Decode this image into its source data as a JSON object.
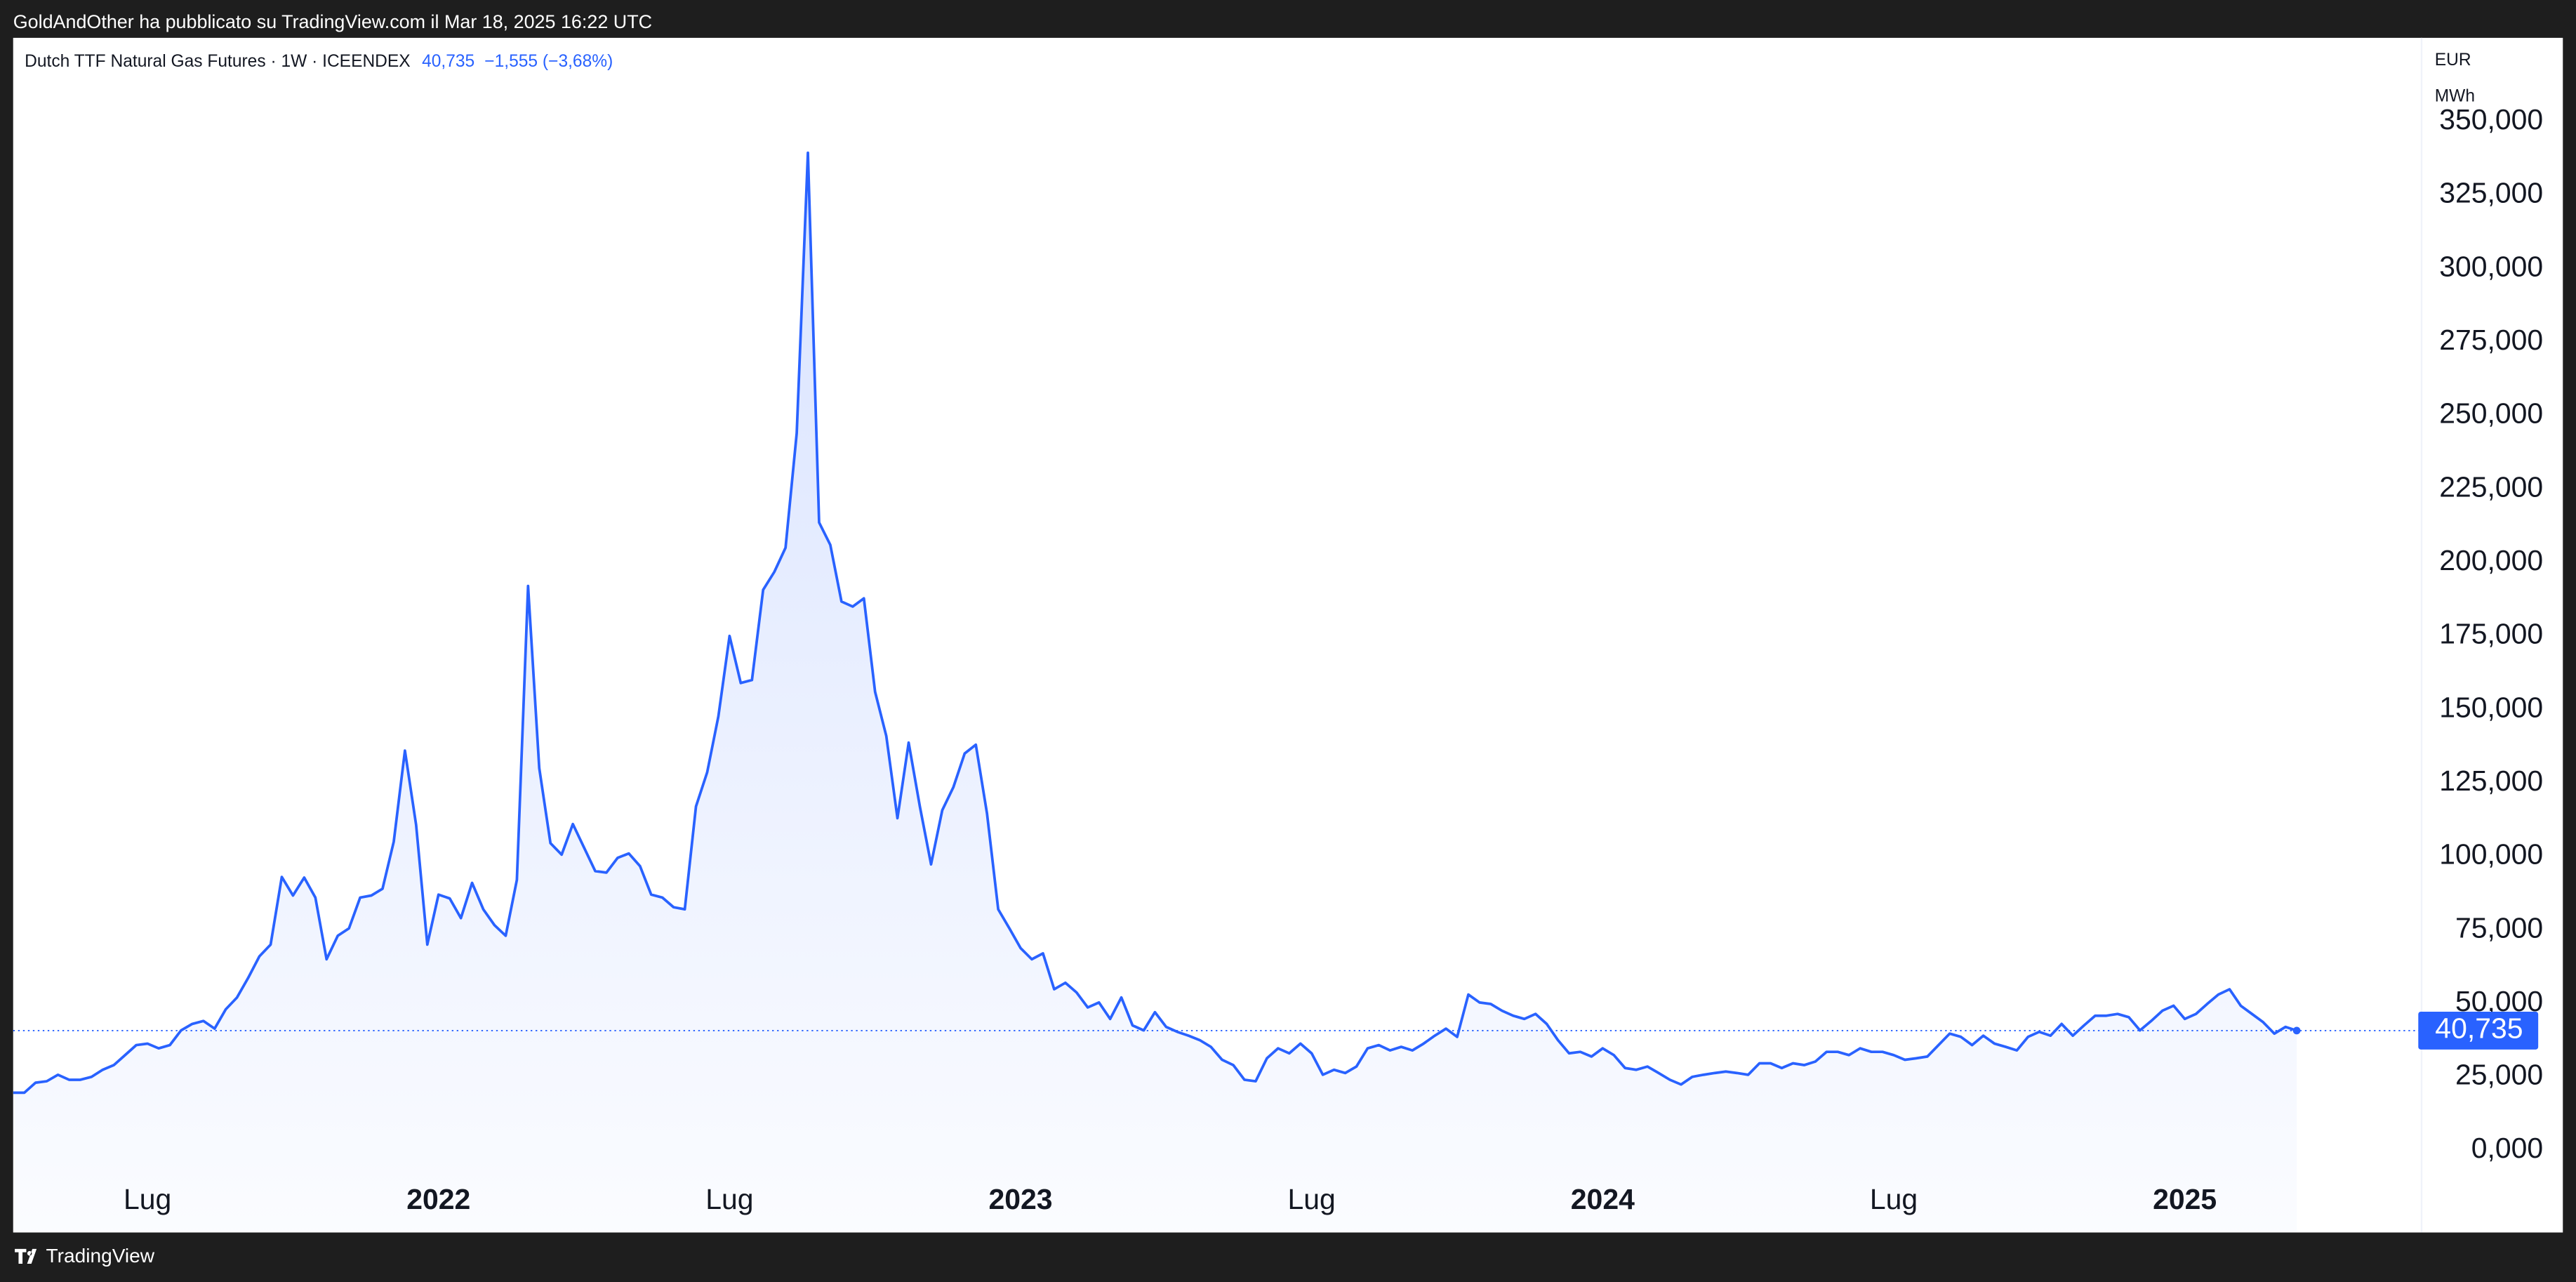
{
  "attribution": "GoldAndOther ha pubblicato su TradingView.com il Mar 18, 2025 16:22 UTC",
  "brand": "TradingView",
  "chart_data": {
    "type": "line",
    "title": "Dutch TTF Natural Gas Futures · 1W · ICEENDEX",
    "price": "40,735",
    "change": "−1,555 (−3,68%)",
    "currency": "EUR",
    "unit": "MWh",
    "color": "#2962ff",
    "categories": [
      null,
      null,
      null,
      null,
      null,
      null,
      null,
      null,
      null,
      null,
      null,
      null,
      "Lug",
      null,
      null,
      null,
      null,
      null,
      null,
      null,
      null,
      null,
      null,
      null,
      null,
      null,
      null,
      null,
      null,
      null,
      null,
      null,
      null,
      null,
      null,
      null,
      null,
      null,
      "2022",
      null,
      null,
      null,
      null,
      null,
      null,
      null,
      null,
      null,
      null,
      null,
      null,
      null,
      null,
      null,
      null,
      null,
      null,
      null,
      null,
      null,
      null,
      null,
      null,
      null,
      "Lug",
      null,
      null,
      null,
      null,
      null,
      null,
      null,
      null,
      null,
      null,
      null,
      null,
      null,
      null,
      null,
      null,
      null,
      null,
      null,
      null,
      null,
      null,
      null,
      null,
      null,
      "2023",
      null,
      null,
      null,
      null,
      null,
      null,
      null,
      null,
      null,
      null,
      null,
      null,
      null,
      null,
      null,
      null,
      null,
      null,
      null,
      null,
      null,
      null,
      null,
      null,
      null,
      "Lug",
      null,
      null,
      null,
      null,
      null,
      null,
      null,
      null,
      null,
      null,
      null,
      null,
      null,
      null,
      null,
      null,
      null,
      null,
      null,
      null,
      null,
      null,
      null,
      null,
      null,
      "2024",
      null,
      null,
      null,
      null,
      null,
      null,
      null,
      null,
      null,
      null,
      null,
      null,
      null,
      null,
      null,
      null,
      null,
      null,
      null,
      null,
      null,
      null,
      null,
      null,
      null,
      "Lug",
      null,
      null,
      null,
      null,
      null,
      null,
      null,
      null,
      null,
      null,
      null,
      null,
      null,
      null,
      null,
      null,
      null,
      null,
      null,
      null,
      null,
      null,
      null,
      null,
      null,
      "2025",
      null,
      null,
      null,
      null,
      null,
      null,
      null,
      null,
      null,
      null
    ],
    "values": [
      19.6,
      19.6,
      23,
      23.5,
      25.7,
      24,
      24,
      25,
      27.4,
      29,
      32.4,
      35.8,
      36.3,
      34.7,
      35.8,
      40.8,
      43,
      44,
      41.4,
      48,
      52,
      58.7,
      66,
      70,
      93,
      86.7,
      92.8,
      86,
      65,
      73,
      75.5,
      86,
      86.7,
      89,
      105,
      136,
      110.7,
      70,
      87,
      85.7,
      79,
      91,
      82,
      76.6,
      73,
      92,
      192,
      130,
      104.5,
      100.6,
      111,
      103,
      95,
      94.5,
      99.5,
      101,
      96.7,
      87,
      86,
      82.7,
      82,
      117,
      128.6,
      147.6,
      175,
      159,
      160,
      190.7,
      196.8,
      205,
      244,
      339.4,
      213.6,
      206,
      186.7,
      185,
      187.8,
      156,
      141,
      113,
      138.7,
      117,
      97.3,
      115.7,
      123.6,
      135,
      138,
      114.6,
      82,
      75.5,
      68.8,
      65,
      67,
      54.8,
      57,
      53.7,
      48.6,
      50.3,
      44.7,
      52,
      42.5,
      40.8,
      47,
      42,
      40.3,
      39,
      37.5,
      35.2,
      30.8,
      29,
      24,
      23.5,
      31.3,
      34.7,
      33,
      36.3,
      33,
      25.7,
      27.4,
      26.3,
      28.5,
      34.7,
      35.8,
      34,
      35.2,
      34,
      36.3,
      39,
      41.4,
      38.6,
      53,
      50.3,
      49.8,
      47.5,
      45.8,
      44.7,
      46.4,
      43,
      37.5,
      33,
      33.5,
      31.9,
      34.7,
      32.4,
      28,
      27.4,
      28.5,
      26.3,
      24,
      22.4,
      25,
      25.7,
      26.3,
      26.8,
      26.3,
      25.7,
      29.6,
      29.6,
      28,
      29.6,
      29,
      30.2,
      33.5,
      33.5,
      32.4,
      34.7,
      33.5,
      33.5,
      32.4,
      30.8,
      31.3,
      31.9,
      35.8,
      39.7,
      38.6,
      35.8,
      39,
      36.3,
      35.2,
      34,
      38.6,
      40.3,
      39,
      43,
      39,
      42.5,
      45.8,
      45.8,
      46.4,
      45.3,
      40.8,
      44,
      47.5,
      49.2,
      44.7,
      46.4,
      49.8,
      53,
      54.8,
      49.2,
      46.4,
      43.6,
      39.7,
      42,
      40.735
    ],
    "ylim": [
      -27.96,
      378.5
    ],
    "yticks": [
      {
        "value": 0,
        "label": "0,000"
      },
      {
        "value": 25,
        "label": "25,000"
      },
      {
        "value": 50,
        "label": "50,000"
      },
      {
        "value": 75,
        "label": "75,000"
      },
      {
        "value": 100,
        "label": "100,000"
      },
      {
        "value": 125,
        "label": "125,000"
      },
      {
        "value": 150,
        "label": "150,000"
      },
      {
        "value": 175,
        "label": "175,000"
      },
      {
        "value": 200,
        "label": "200,000"
      },
      {
        "value": 225,
        "label": "225,000"
      },
      {
        "value": 250,
        "label": "250,000"
      },
      {
        "value": 275,
        "label": "275,000"
      },
      {
        "value": 300,
        "label": "300,000"
      },
      {
        "value": 325,
        "label": "325,000"
      },
      {
        "value": 350,
        "label": "350,000"
      }
    ],
    "grid": false
  }
}
